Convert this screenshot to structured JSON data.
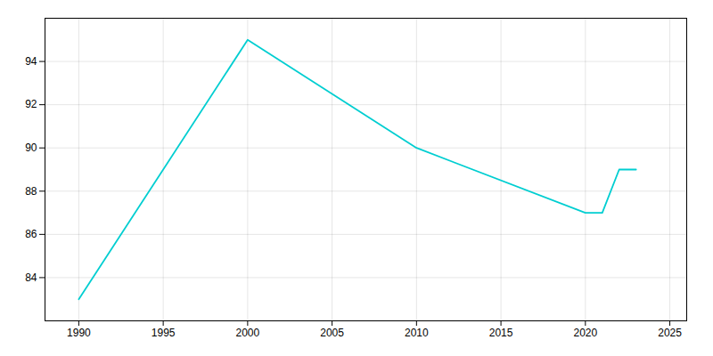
{
  "chart_data": {
    "type": "line",
    "x": [
      1990,
      2000,
      2010,
      2020,
      2021,
      2022,
      2023
    ],
    "values": [
      83,
      95,
      90,
      87,
      87,
      89,
      89
    ],
    "color": "#00CED1",
    "xlim": [
      1988,
      2026
    ],
    "xticks": [
      1990,
      1995,
      2000,
      2005,
      2010,
      2015,
      2020,
      2025
    ],
    "ylim": [
      82,
      96
    ],
    "yticks": [
      84,
      86,
      88,
      90,
      92,
      94
    ],
    "grid": true
  }
}
